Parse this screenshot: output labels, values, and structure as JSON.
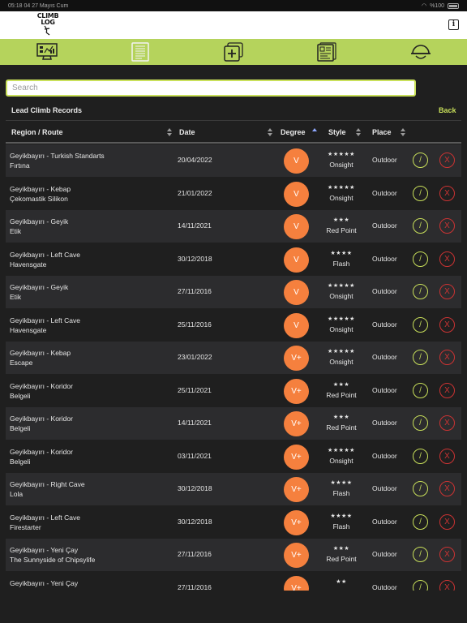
{
  "status_bar": {
    "time": "05:18 04",
    "date": "27 Mayıs Cum",
    "battery": "%100"
  },
  "header": {
    "logo_top": "CLIMB",
    "logo_bottom": "LOG",
    "info_label": "i"
  },
  "nav": {
    "items": [
      "dashboard-icon",
      "records-list-icon",
      "add-record-icon",
      "statistics-icon",
      "climber-helmet-icon"
    ]
  },
  "search": {
    "placeholder": "Search",
    "value": ""
  },
  "records": {
    "title": "Lead Climb Records",
    "back_label": "Back"
  },
  "table": {
    "columns": {
      "region": "Region / Route",
      "date": "Date",
      "degree": "Degree",
      "style": "Style",
      "place": "Place"
    },
    "rows": [
      {
        "region": "Geyikbayırı - Turkish Standarts",
        "route": "Fırtına",
        "date": "20/04/2022",
        "degree": "V",
        "stars": "★★★★★",
        "style": "Onsight",
        "place": "Outdoor"
      },
      {
        "region": "Geyikbayırı - Kebap",
        "route": "Çekomastik Silikon",
        "date": "21/01/2022",
        "degree": "V",
        "stars": "★★★★★",
        "style": "Onsight",
        "place": "Outdoor"
      },
      {
        "region": "Geyikbayırı - Geyik",
        "route": "Etik",
        "date": "14/11/2021",
        "degree": "V",
        "stars": "★★★",
        "style": "Red Point",
        "place": "Outdoor"
      },
      {
        "region": "Geyikbayırı - Left Cave",
        "route": "Havensgate",
        "date": "30/12/2018",
        "degree": "V",
        "stars": "★★★★",
        "style": "Flash",
        "place": "Outdoor"
      },
      {
        "region": "Geyikbayırı - Geyik",
        "route": "Etik",
        "date": "27/11/2016",
        "degree": "V",
        "stars": "★★★★★",
        "style": "Onsight",
        "place": "Outdoor"
      },
      {
        "region": "Geyikbayırı - Left Cave",
        "route": "Havensgate",
        "date": "25/11/2016",
        "degree": "V",
        "stars": "★★★★★",
        "style": "Onsight",
        "place": "Outdoor"
      },
      {
        "region": "Geyikbayırı - Kebap",
        "route": "Escape",
        "date": "23/01/2022",
        "degree": "V+",
        "stars": "★★★★★",
        "style": "Onsight",
        "place": "Outdoor"
      },
      {
        "region": "Geyikbayırı - Koridor",
        "route": "Belgeli",
        "date": "25/11/2021",
        "degree": "V+",
        "stars": "★★★",
        "style": "Red Point",
        "place": "Outdoor"
      },
      {
        "region": "Geyikbayırı - Koridor",
        "route": "Belgeli",
        "date": "14/11/2021",
        "degree": "V+",
        "stars": "★★★",
        "style": "Red Point",
        "place": "Outdoor"
      },
      {
        "region": "Geyikbayırı - Koridor",
        "route": "Belgeli",
        "date": "03/11/2021",
        "degree": "V+",
        "stars": "★★★★★",
        "style": "Onsight",
        "place": "Outdoor"
      },
      {
        "region": "Geyikbayırı - Right Cave",
        "route": "Lola",
        "date": "30/12/2018",
        "degree": "V+",
        "stars": "★★★★",
        "style": "Flash",
        "place": "Outdoor"
      },
      {
        "region": "Geyikbayırı - Left Cave",
        "route": "Firestarter",
        "date": "30/12/2018",
        "degree": "V+",
        "stars": "★★★★",
        "style": "Flash",
        "place": "Outdoor"
      },
      {
        "region": "Geyikbayırı - Yeni Çay",
        "route": "The Sunnyside of Chipsylife",
        "date": "27/11/2016",
        "degree": "V+",
        "stars": "★★★",
        "style": "Red Point",
        "place": "Outdoor"
      },
      {
        "region": "Geyikbayırı - Yeni Çay",
        "route": "",
        "date": "27/11/2016",
        "degree": "V+",
        "stars": "★★",
        "style": "",
        "place": "Outdoor"
      }
    ],
    "edit_label": "/",
    "delete_label": "X"
  },
  "colors": {
    "accent": "#b5d35c",
    "degree": "#f5803e",
    "delete": "#cc3333",
    "background": "#1f1f1f"
  }
}
